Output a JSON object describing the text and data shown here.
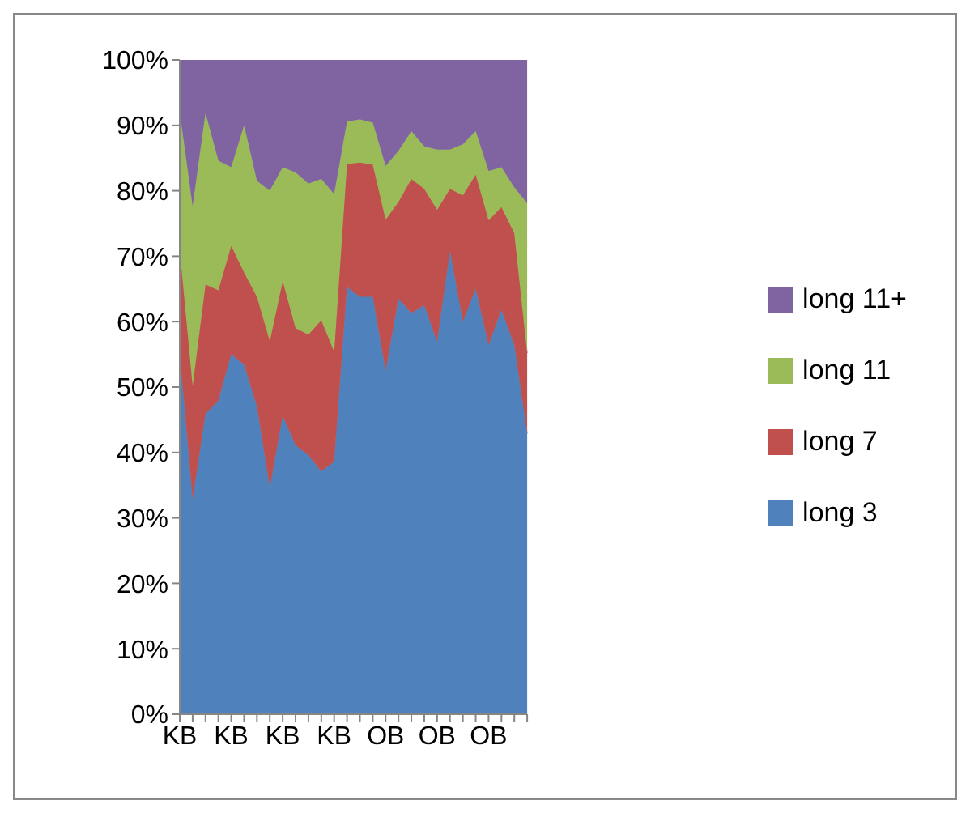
{
  "chart_data": {
    "type": "area",
    "stacked": true,
    "categories": [
      "KB",
      null,
      null,
      null,
      "KB",
      null,
      null,
      null,
      "KB",
      null,
      null,
      null,
      "KB",
      null,
      null,
      null,
      "OB",
      null,
      null,
      null,
      "OB",
      null,
      null,
      null,
      "OB",
      null,
      null,
      null
    ],
    "series": [
      {
        "name": "long 3",
        "color": "#4f81bd",
        "values": [
          55,
          32.9,
          45.9,
          47.9,
          55,
          53.4,
          47,
          34.6,
          45.6,
          41.1,
          39.6,
          37.1,
          38.6,
          65.3,
          63.8,
          63.8,
          52.5,
          63.5,
          61.3,
          62.5,
          56.9,
          70.8,
          60,
          65,
          56.4,
          61.8,
          56.4,
          42.9
        ]
      },
      {
        "name": "long 7",
        "color": "#c0504d",
        "values": [
          16,
          17.3,
          19.8,
          16.9,
          16.6,
          14.1,
          16.8,
          22.4,
          20.6,
          17.9,
          18.4,
          23.1,
          16.8,
          18.8,
          20.5,
          20.2,
          23.1,
          14.8,
          20.5,
          17.8,
          20.2,
          9.5,
          19.3,
          17.5,
          19.1,
          15.7,
          17.1,
          12.3
        ]
      },
      {
        "name": "long 11",
        "color": "#9bbb59",
        "values": [
          21,
          27.4,
          26.2,
          19.8,
          12,
          22.5,
          17.7,
          23,
          17.4,
          23.8,
          23.1,
          21.6,
          24.1,
          6.5,
          6.6,
          6.4,
          8.2,
          7.8,
          7.3,
          6.5,
          9.2,
          6,
          7.8,
          6.6,
          7.5,
          6.1,
          7,
          22.9
        ]
      },
      {
        "name": "long 11+",
        "color": "#8064a2",
        "values": [
          8,
          22.4,
          8.1,
          15.4,
          16.4,
          10,
          18.5,
          20,
          16.4,
          17.2,
          18.9,
          18.2,
          20.5,
          9.4,
          9.1,
          9.6,
          16.2,
          13.9,
          10.9,
          13.2,
          13.7,
          13.7,
          12.9,
          10.9,
          17,
          16.4,
          19.5,
          21.9
        ]
      }
    ],
    "ylim": [
      0,
      100
    ],
    "yticks": [
      {
        "value": 0,
        "label": "0%"
      },
      {
        "value": 10,
        "label": "10%"
      },
      {
        "value": 20,
        "label": "20%"
      },
      {
        "value": 30,
        "label": "30%"
      },
      {
        "value": 40,
        "label": "40%"
      },
      {
        "value": 50,
        "label": "50%"
      },
      {
        "value": 60,
        "label": "60%"
      },
      {
        "value": 70,
        "label": "70%"
      },
      {
        "value": 80,
        "label": "80%"
      },
      {
        "value": 90,
        "label": "90%"
      },
      {
        "value": 100,
        "label": "100%"
      }
    ],
    "legend": "right"
  }
}
